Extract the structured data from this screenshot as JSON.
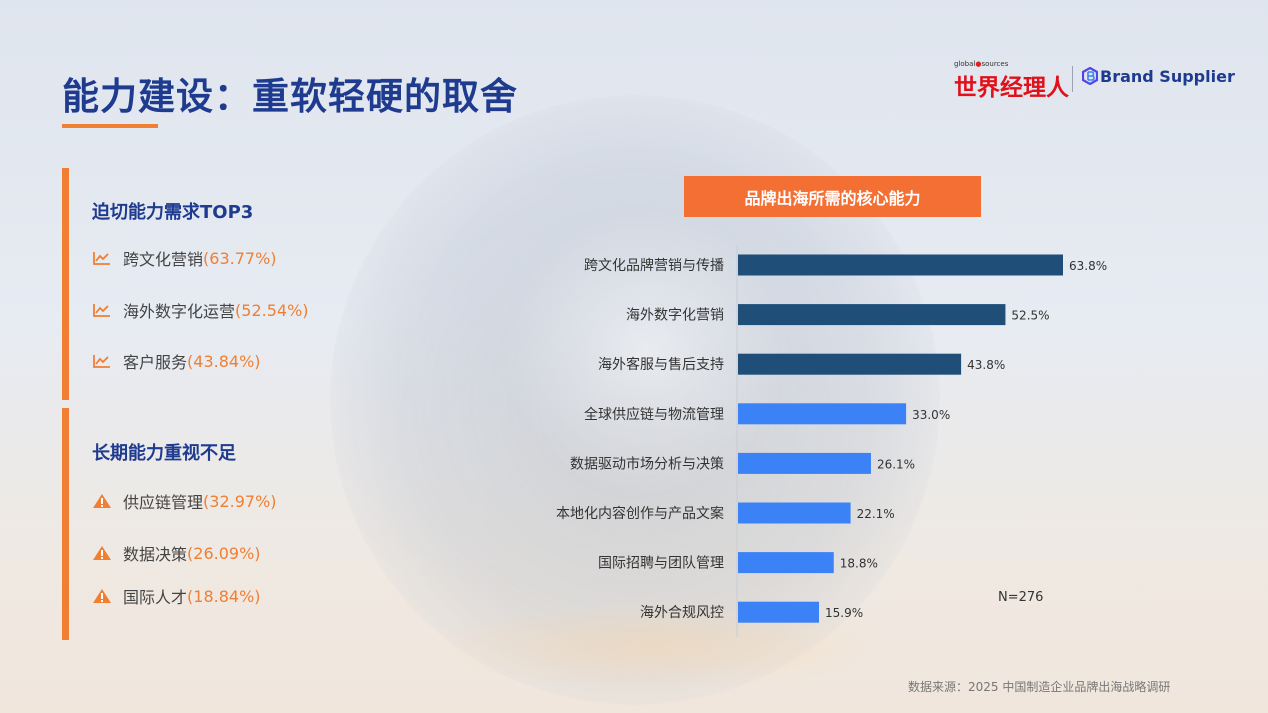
{
  "page": {
    "title": "能力建设：重软轻硬的取舍",
    "source": "数据来源：2025 中国制造企业品牌出海战略调研"
  },
  "logos": {
    "globalsources_prefix": "global",
    "globalsources_suffix": "sources",
    "globalsources_cn": "世界经理人",
    "brand_supplier": "Brand Supplier"
  },
  "left": {
    "section1": {
      "title": "迫切能力需求TOP3",
      "items": [
        {
          "label": "跨文化营销 ",
          "pct": "(63.77%)",
          "icon": "trend-icon"
        },
        {
          "label": "海外数字化运营 ",
          "pct": "(52.54%)",
          "icon": "trend-icon"
        },
        {
          "label": "客户服务 ",
          "pct": "(43.84%)",
          "icon": "trend-icon"
        }
      ]
    },
    "section2": {
      "title": "长期能力重视不足",
      "items": [
        {
          "label": "供应链管理 ",
          "pct": "(32.97%)",
          "icon": "warning-icon"
        },
        {
          "label": "数据决策 ",
          "pct": "(26.09%)",
          "icon": "warning-icon"
        },
        {
          "label": "国际人才 ",
          "pct": "(18.84%)",
          "icon": "warning-icon"
        }
      ]
    }
  },
  "colors": {
    "accent_orange": "#f07f33",
    "title_blue": "#1f3b8f",
    "bar_dark": "#1f4e79",
    "bar_light": "#3b82f6"
  },
  "chart_data": {
    "type": "bar",
    "orientation": "horizontal",
    "title": "品牌出海所需的核心能力",
    "categories": [
      "跨文化品牌营销与传播",
      "海外数字化营销",
      "海外客服与售后支持",
      "全球供应链与物流管理",
      "数据驱动市场分析与决策",
      "本地化内容创作与产品文案",
      "国际招聘与团队管理",
      "海外合规风控"
    ],
    "values": [
      63.8,
      52.5,
      43.8,
      33.0,
      26.1,
      22.1,
      18.8,
      15.9
    ],
    "value_labels": [
      "63.8%",
      "52.5%",
      "43.8%",
      "33.0%",
      "26.1%",
      "22.1%",
      "18.8%",
      "15.9%"
    ],
    "highlight_top": 3,
    "note": "N=276",
    "xlim": [
      0,
      70
    ]
  }
}
